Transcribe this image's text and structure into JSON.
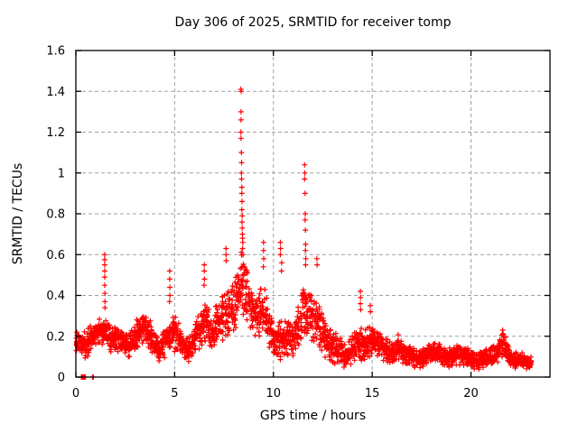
{
  "page": {
    "background": "#ffffff"
  },
  "chart_data": {
    "type": "scatter",
    "title": "Day 306 of 2025, SRMTID for receiver tomp",
    "xlabel": "GPS time / hours",
    "ylabel": "SRMTID / TECUs",
    "xlim": [
      0,
      24
    ],
    "ylim": [
      0,
      1.6
    ],
    "xticks": [
      0,
      5,
      10,
      15,
      20
    ],
    "xtick_labels": [
      "0",
      "5",
      "10",
      "15",
      "20"
    ],
    "yticks": [
      0,
      0.2,
      0.4,
      0.6,
      0.8,
      1,
      1.2,
      1.4,
      1.6
    ],
    "ytick_labels": [
      "0",
      "0.2",
      "0.4",
      "0.6",
      "0.8",
      "1",
      "1.2",
      "1.4",
      "1.6"
    ],
    "grid": true,
    "legend": "none",
    "marker": "plus",
    "marker_color": "#ff0000",
    "grid_color": "#a0a0a0",
    "border_color": "#000000",
    "series": [
      {
        "name": "SRMTID",
        "points_per_hour": 110,
        "time_range": [
          0.02,
          23.05
        ],
        "peak_points": [
          [
            1.46,
            0.6
          ],
          [
            1.46,
            0.575
          ],
          [
            1.46,
            0.55
          ],
          [
            1.46,
            0.52
          ],
          [
            1.46,
            0.49
          ],
          [
            1.46,
            0.45
          ],
          [
            1.47,
            0.41
          ],
          [
            1.47,
            0.37
          ],
          [
            1.47,
            0.34
          ],
          [
            4.75,
            0.52
          ],
          [
            4.75,
            0.48
          ],
          [
            4.76,
            0.44
          ],
          [
            4.76,
            0.4
          ],
          [
            4.74,
            0.37
          ],
          [
            6.5,
            0.55
          ],
          [
            6.5,
            0.52
          ],
          [
            6.51,
            0.48
          ],
          [
            6.49,
            0.45
          ],
          [
            7.6,
            0.63
          ],
          [
            7.6,
            0.6
          ],
          [
            7.61,
            0.57
          ],
          [
            8.35,
            1.41
          ],
          [
            8.37,
            1.4
          ],
          [
            8.36,
            1.3
          ],
          [
            8.36,
            1.26
          ],
          [
            8.35,
            1.2
          ],
          [
            8.36,
            1.17
          ],
          [
            8.38,
            1.1
          ],
          [
            8.39,
            1.05
          ],
          [
            8.38,
            1.0
          ],
          [
            8.39,
            0.97
          ],
          [
            8.4,
            0.93
          ],
          [
            8.4,
            0.9
          ],
          [
            8.41,
            0.86
          ],
          [
            8.4,
            0.82
          ],
          [
            8.42,
            0.79
          ],
          [
            8.41,
            0.76
          ],
          [
            8.42,
            0.73
          ],
          [
            8.43,
            0.7
          ],
          [
            8.44,
            0.68
          ],
          [
            8.45,
            0.66
          ],
          [
            8.44,
            0.63
          ],
          [
            8.46,
            0.6
          ],
          [
            9.5,
            0.66
          ],
          [
            9.5,
            0.62
          ],
          [
            9.51,
            0.58
          ],
          [
            9.49,
            0.54
          ],
          [
            10.35,
            0.66
          ],
          [
            10.36,
            0.63
          ],
          [
            10.35,
            0.6
          ],
          [
            10.42,
            0.56
          ],
          [
            10.41,
            0.52
          ],
          [
            11.58,
            1.04
          ],
          [
            11.59,
            1.0
          ],
          [
            11.58,
            0.97
          ],
          [
            11.6,
            0.9
          ],
          [
            11.61,
            0.8
          ],
          [
            11.6,
            0.77
          ],
          [
            11.62,
            0.72
          ],
          [
            11.63,
            0.65
          ],
          [
            11.62,
            0.62
          ],
          [
            11.64,
            0.58
          ],
          [
            11.63,
            0.55
          ],
          [
            12.2,
            0.58
          ],
          [
            12.21,
            0.55
          ],
          [
            14.4,
            0.42
          ],
          [
            14.41,
            0.39
          ],
          [
            14.4,
            0.36
          ],
          [
            14.42,
            0.33
          ],
          [
            14.9,
            0.35
          ],
          [
            14.91,
            0.32
          ],
          [
            21.6,
            0.23
          ],
          [
            21.62,
            0.21
          ],
          [
            0.28,
            0
          ],
          [
            0.32,
            0
          ],
          [
            0.36,
            0
          ],
          [
            0.4,
            0
          ],
          [
            0.44,
            0
          ],
          [
            0.48,
            0
          ],
          [
            0.85,
            0
          ],
          [
            0.88,
            0
          ],
          [
            0.03,
            0.13
          ],
          [
            0.04,
            0.155
          ],
          [
            0.03,
            0.19
          ],
          [
            0.05,
            0.22
          ]
        ],
        "band_envelope": [
          [
            0.02,
            0.12,
            0.23
          ],
          [
            0.3,
            0.1,
            0.22
          ],
          [
            0.6,
            0.08,
            0.25
          ],
          [
            0.9,
            0.12,
            0.27
          ],
          [
            1.2,
            0.14,
            0.3
          ],
          [
            1.5,
            0.14,
            0.3
          ],
          [
            1.8,
            0.12,
            0.26
          ],
          [
            2.1,
            0.12,
            0.25
          ],
          [
            2.4,
            0.1,
            0.24
          ],
          [
            2.7,
            0.08,
            0.22
          ],
          [
            3.0,
            0.12,
            0.28
          ],
          [
            3.3,
            0.16,
            0.33
          ],
          [
            3.6,
            0.14,
            0.31
          ],
          [
            3.9,
            0.1,
            0.26
          ],
          [
            4.2,
            0.06,
            0.19
          ],
          [
            4.5,
            0.09,
            0.26
          ],
          [
            4.8,
            0.13,
            0.34
          ],
          [
            5.1,
            0.12,
            0.3
          ],
          [
            5.4,
            0.09,
            0.24
          ],
          [
            5.7,
            0.06,
            0.2
          ],
          [
            6.0,
            0.1,
            0.26
          ],
          [
            6.3,
            0.14,
            0.34
          ],
          [
            6.6,
            0.16,
            0.4
          ],
          [
            6.9,
            0.13,
            0.32
          ],
          [
            7.2,
            0.15,
            0.38
          ],
          [
            7.5,
            0.18,
            0.46
          ],
          [
            7.8,
            0.18,
            0.44
          ],
          [
            8.1,
            0.22,
            0.52
          ],
          [
            8.35,
            0.28,
            0.68
          ],
          [
            8.6,
            0.24,
            0.56
          ],
          [
            8.9,
            0.2,
            0.46
          ],
          [
            9.2,
            0.18,
            0.42
          ],
          [
            9.5,
            0.2,
            0.48
          ],
          [
            9.8,
            0.13,
            0.34
          ],
          [
            10.1,
            0.08,
            0.26
          ],
          [
            10.4,
            0.06,
            0.3
          ],
          [
            10.7,
            0.1,
            0.3
          ],
          [
            11.0,
            0.1,
            0.28
          ],
          [
            11.3,
            0.14,
            0.38
          ],
          [
            11.55,
            0.18,
            0.5
          ],
          [
            11.8,
            0.18,
            0.46
          ],
          [
            12.1,
            0.16,
            0.42
          ],
          [
            12.4,
            0.12,
            0.35
          ],
          [
            12.7,
            0.08,
            0.28
          ],
          [
            13.0,
            0.06,
            0.24
          ],
          [
            13.3,
            0.05,
            0.2
          ],
          [
            13.6,
            0.03,
            0.18
          ],
          [
            13.9,
            0.05,
            0.2
          ],
          [
            14.2,
            0.08,
            0.24
          ],
          [
            14.5,
            0.08,
            0.26
          ],
          [
            14.8,
            0.07,
            0.24
          ],
          [
            15.1,
            0.1,
            0.28
          ],
          [
            15.4,
            0.08,
            0.22
          ],
          [
            15.7,
            0.06,
            0.2
          ],
          [
            16.0,
            0.05,
            0.18
          ],
          [
            16.3,
            0.08,
            0.22
          ],
          [
            16.6,
            0.06,
            0.19
          ],
          [
            16.9,
            0.05,
            0.17
          ],
          [
            17.2,
            0.04,
            0.14
          ],
          [
            17.5,
            0.04,
            0.13
          ],
          [
            17.8,
            0.06,
            0.17
          ],
          [
            18.1,
            0.07,
            0.19
          ],
          [
            18.4,
            0.06,
            0.18
          ],
          [
            18.7,
            0.04,
            0.14
          ],
          [
            19.0,
            0.04,
            0.15
          ],
          [
            19.3,
            0.06,
            0.17
          ],
          [
            19.6,
            0.05,
            0.16
          ],
          [
            19.9,
            0.04,
            0.14
          ],
          [
            20.2,
            0.03,
            0.12
          ],
          [
            20.5,
            0.04,
            0.13
          ],
          [
            20.8,
            0.05,
            0.15
          ],
          [
            21.1,
            0.05,
            0.16
          ],
          [
            21.4,
            0.07,
            0.19
          ],
          [
            21.65,
            0.09,
            0.24
          ],
          [
            21.9,
            0.05,
            0.16
          ],
          [
            22.2,
            0.04,
            0.13
          ],
          [
            22.5,
            0.04,
            0.13
          ],
          [
            23.05,
            0.04,
            0.11
          ]
        ]
      }
    ]
  }
}
